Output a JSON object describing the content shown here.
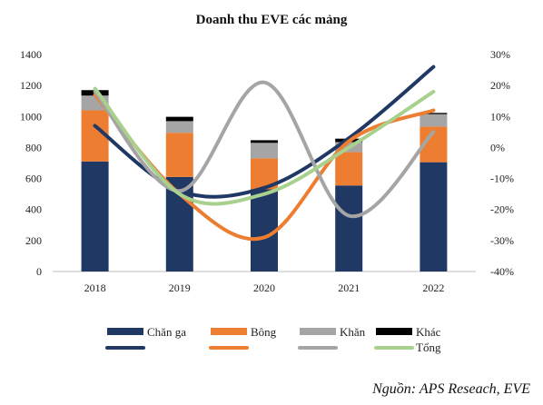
{
  "chart_data": {
    "type": "bar",
    "title": "Doanh thu EVE các mảng",
    "categories": [
      "2018",
      "2019",
      "2020",
      "2021",
      "2022"
    ],
    "y_left": {
      "ylim": [
        0,
        1400
      ],
      "ticks": [
        0,
        200,
        400,
        600,
        800,
        1000,
        1200,
        1400
      ]
    },
    "y_right": {
      "ylim": [
        -40,
        30
      ],
      "ticks": [
        "-40%",
        "-30%",
        "-20%",
        "-10%",
        "0%",
        "10%",
        "20%",
        "30%"
      ]
    },
    "bar_series": [
      {
        "name": "Chăn ga",
        "color": "#203864",
        "values": [
          710,
          610,
          530,
          555,
          705
        ]
      },
      {
        "name": "Bông",
        "color": "#ED7D31",
        "values": [
          330,
          285,
          200,
          215,
          230
        ]
      },
      {
        "name": "Khăn",
        "color": "#A5A5A5",
        "values": [
          95,
          75,
          100,
          65,
          80
        ]
      },
      {
        "name": "Khác",
        "color": "#000000",
        "values": [
          35,
          28,
          17,
          22,
          8
        ]
      }
    ],
    "line_series": [
      {
        "name": "",
        "color": "#203864",
        "values": [
          7,
          -14,
          -13,
          3,
          26
        ]
      },
      {
        "name": "",
        "color": "#ED7D31",
        "values": [
          17,
          -15,
          -29,
          2,
          12
        ]
      },
      {
        "name": "",
        "color": "#A5A5A5",
        "values": [
          18,
          -14,
          21,
          -22,
          5
        ]
      },
      {
        "name": "Tổng",
        "color": "#A9D18E",
        "values": [
          19,
          -15,
          -15,
          0,
          18
        ]
      }
    ],
    "legend_position": "bottom"
  },
  "source": "Nguồn: APS Reseach, EVE"
}
